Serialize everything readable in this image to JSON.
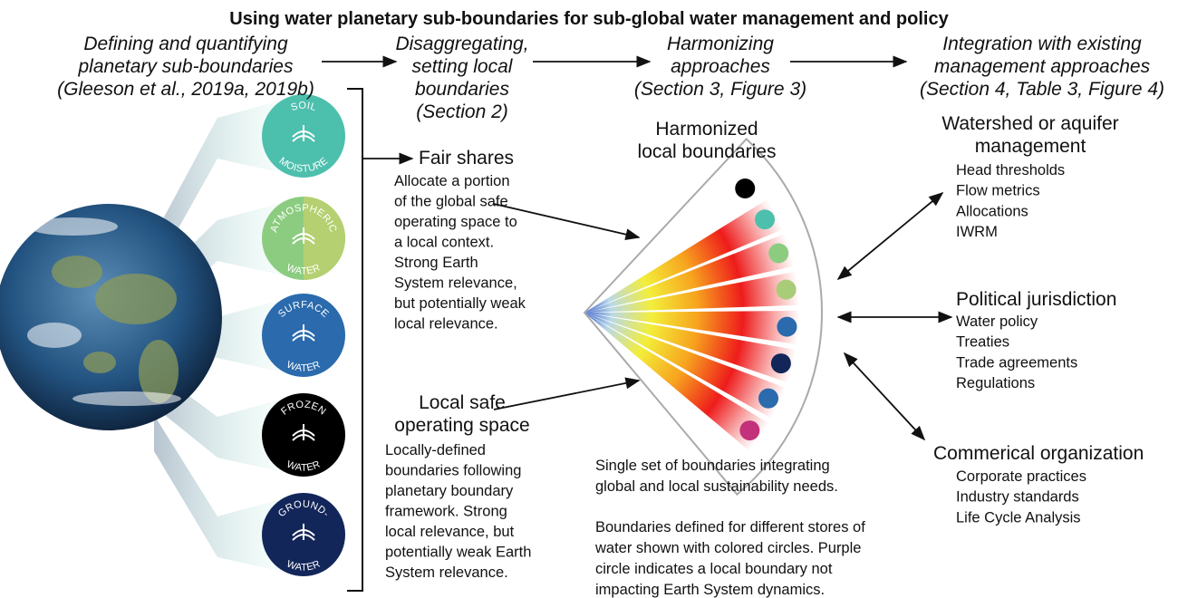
{
  "title": "Using water planetary sub-boundaries for sub-global water management and policy",
  "steps": [
    [
      "Defining and quantifying",
      "planetary sub-boundaries",
      "(Gleeson et al., 2019a, 2019b)"
    ],
    [
      "Disaggregating,",
      "setting local",
      "boundaries",
      "(Section 2)"
    ],
    [
      "Harmonizing",
      "approaches",
      "(Section 3, Figure 3)"
    ],
    [
      "Integration with existing",
      "management approaches",
      "(Section 4, Table 3, Figure 4)"
    ]
  ],
  "stores": [
    {
      "top": "SOIL",
      "bottom": "MOISTURE"
    },
    {
      "top": "ATMOSPHERIC",
      "bottom": "WATER"
    },
    {
      "top": "SURFACE",
      "bottom": "WATER"
    },
    {
      "top": "FROZEN",
      "bottom": "WATER"
    },
    {
      "top": "GROUND-",
      "bottom": "WATER"
    }
  ],
  "fair_shares": {
    "heading": [
      "Fair shares"
    ],
    "body": [
      "Allocate a portion",
      "of the global safe",
      "operating space to",
      "a local context.",
      "Strong Earth",
      "System relevance,",
      "but potentially weak",
      "local relevance."
    ]
  },
  "local_safe": {
    "heading": [
      "Local safe",
      "operating space"
    ],
    "body": [
      "Locally-defined",
      "boundaries following",
      "planetary boundary",
      "framework. Strong",
      "local relevance, but",
      "potentially weak Earth",
      "System relevance."
    ]
  },
  "harmonized": {
    "heading": [
      "Harmonized",
      "local boundaries"
    ],
    "caption1": [
      "Single set of boundaries integrating",
      "global and local sustainability needs."
    ],
    "caption2": [
      "Boundaries defined for different stores of",
      "water shown with colored circles. Purple",
      "circle indicates a local boundary not",
      "impacting Earth System dynamics."
    ]
  },
  "approaches": [
    {
      "heading": [
        "Watershed or aquifer",
        "management"
      ],
      "items": [
        "Head thresholds",
        "Flow metrics",
        "Allocations",
        "IWRM"
      ]
    },
    {
      "heading": [
        "Political jurisdiction"
      ],
      "items": [
        "Water policy",
        "Treaties",
        "Trade agreements",
        "Regulations"
      ]
    },
    {
      "heading": [
        "Commerical organization"
      ],
      "items": [
        "Corporate practices",
        "Industry standards",
        "Life Cycle Analysis"
      ]
    }
  ]
}
